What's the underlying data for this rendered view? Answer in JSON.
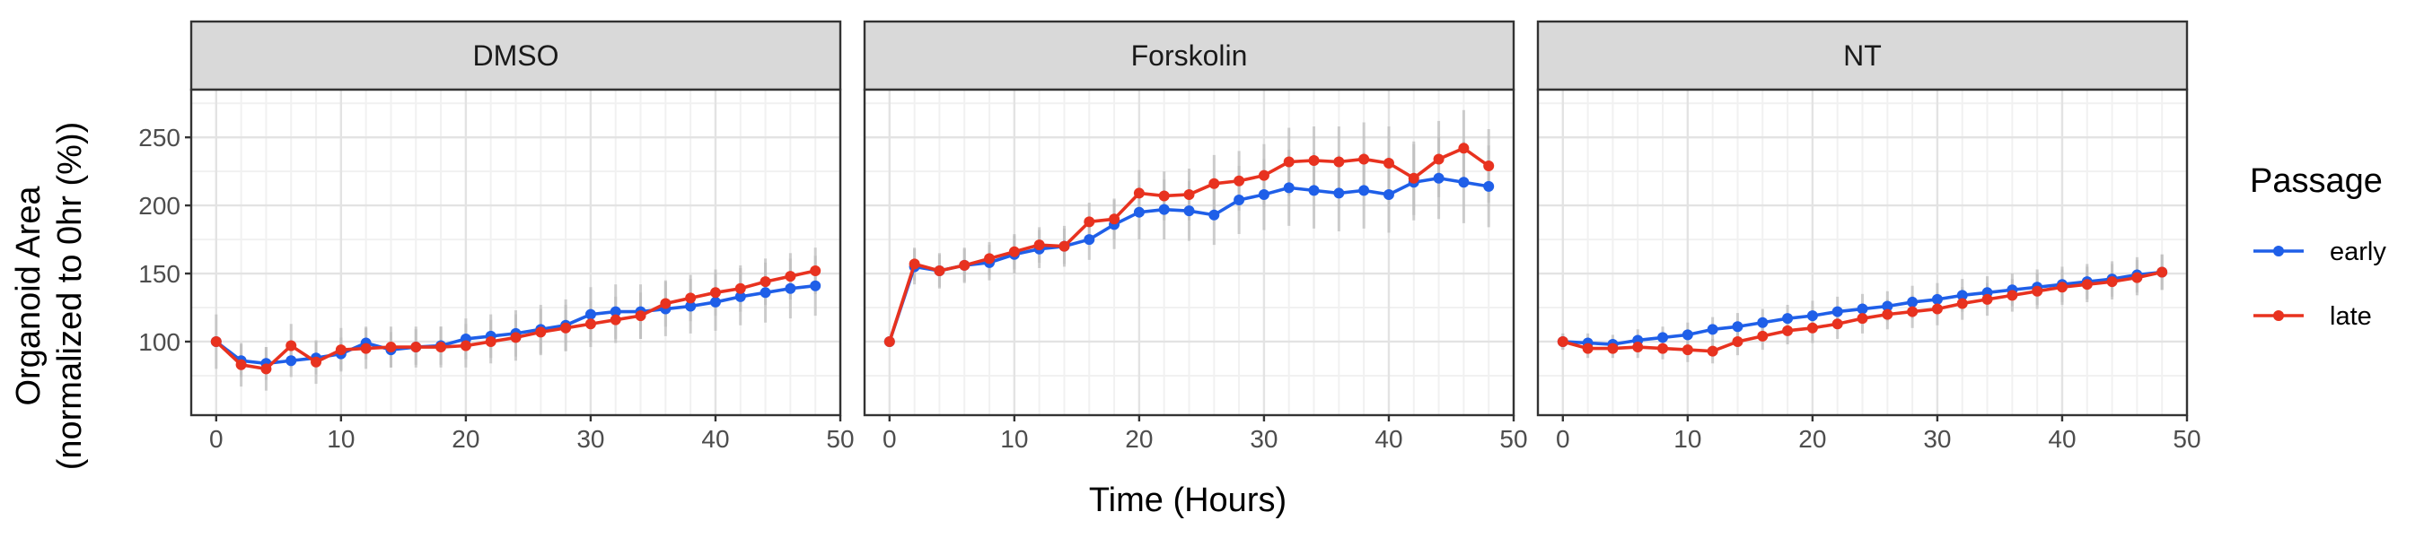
{
  "chart_data": {
    "type": "line",
    "facets": [
      "DMSO",
      "Forskolin",
      "NT"
    ],
    "x": [
      0,
      2,
      4,
      6,
      8,
      10,
      12,
      14,
      16,
      18,
      20,
      22,
      24,
      26,
      28,
      30,
      32,
      34,
      36,
      38,
      40,
      42,
      44,
      46,
      48
    ],
    "xlabel": "Time (Hours)",
    "ylabel_lines": [
      "Organoid Area",
      "(normalized to 0hr (%))"
    ],
    "xlim": [
      -2,
      50
    ],
    "ylim": [
      46,
      285
    ],
    "xticks": [
      0,
      10,
      20,
      30,
      40,
      50
    ],
    "yticks": [
      100,
      150,
      200,
      250
    ],
    "grid": true,
    "legend": {
      "title": "Passage",
      "position": "right"
    },
    "series_colors": {
      "early": "#1f5fe8",
      "late": "#e8321f"
    },
    "panels": [
      {
        "facet": "DMSO",
        "series": [
          {
            "name": "early",
            "values": [
              100,
              86,
              84,
              86,
              88,
              91,
              99,
              94,
              96,
              97,
              102,
              104,
              106,
              109,
              112,
              120,
              122,
              122,
              124,
              126,
              129,
              133,
              136,
              139,
              141
            ],
            "err": [
              0,
              12,
              12,
              12,
              12,
              12,
              12,
              13,
              13,
              14,
              15,
              16,
              17,
              18,
              19,
              20,
              20,
              20,
              20,
              20,
              21,
              21,
              22,
              22,
              22
            ]
          },
          {
            "name": "late",
            "values": [
              100,
              83,
              80,
              97,
              85,
              94,
              95,
              96,
              96,
              96,
              97,
              100,
              103,
              107,
              110,
              113,
              116,
              119,
              128,
              132,
              136,
              139,
              144,
              148,
              152
            ],
            "err": [
              20,
              16,
              16,
              16,
              16,
              16,
              15,
              15,
              15,
              15,
              16,
              16,
              17,
              17,
              17,
              17,
              17,
              17,
              17,
              17,
              17,
              17,
              17,
              17,
              17
            ]
          }
        ]
      },
      {
        "facet": "Forskolin",
        "series": [
          {
            "name": "early",
            "values": [
              100,
              155,
              152,
              156,
              158,
              164,
              168,
              170,
              175,
              186,
              195,
              197,
              196,
              193,
              204,
              208,
              213,
              211,
              209,
              211,
              208,
              217,
              220,
              217,
              214
            ],
            "err": [
              0,
              13,
              13,
              13,
              13,
              14,
              14,
              15,
              15,
              18,
              20,
              22,
              22,
              22,
              25,
              26,
              28,
              28,
              28,
              28,
              28,
              28,
              30,
              30,
              30
            ]
          },
          {
            "name": "late",
            "values": [
              100,
              157,
              152,
              156,
              161,
              166,
              171,
              170,
              188,
              190,
              209,
              207,
              208,
              216,
              218,
              222,
              232,
              233,
              232,
              234,
              231,
              220,
              234,
              242,
              229
            ],
            "err": [
              0,
              12,
              12,
              12,
              12,
              13,
              13,
              13,
              14,
              15,
              17,
              18,
              19,
              21,
              22,
              23,
              25,
              25,
              26,
              27,
              27,
              27,
              28,
              28,
              27
            ]
          }
        ]
      },
      {
        "facet": "NT",
        "series": [
          {
            "name": "early",
            "values": [
              100,
              99,
              98,
              101,
              103,
              105,
              109,
              111,
              114,
              117,
              119,
              122,
              124,
              126,
              129,
              131,
              134,
              136,
              138,
              140,
              142,
              144,
              146,
              149,
              151
            ],
            "err": [
              6,
              7,
              7,
              8,
              8,
              9,
              9,
              10,
              10,
              10,
              11,
              11,
              11,
              11,
              12,
              12,
              12,
              12,
              12,
              13,
              13,
              13,
              13,
              13,
              13
            ]
          },
          {
            "name": "late",
            "values": [
              100,
              95,
              95,
              96,
              95,
              94,
              93,
              100,
              104,
              108,
              110,
              113,
              117,
              120,
              122,
              124,
              128,
              131,
              134,
              137,
              140,
              142,
              144,
              147,
              151
            ],
            "err": [
              6,
              7,
              7,
              8,
              8,
              9,
              9,
              10,
              10,
              10,
              11,
              11,
              11,
              11,
              12,
              12,
              12,
              12,
              12,
              13,
              13,
              13,
              13,
              13,
              13
            ]
          }
        ]
      }
    ]
  }
}
